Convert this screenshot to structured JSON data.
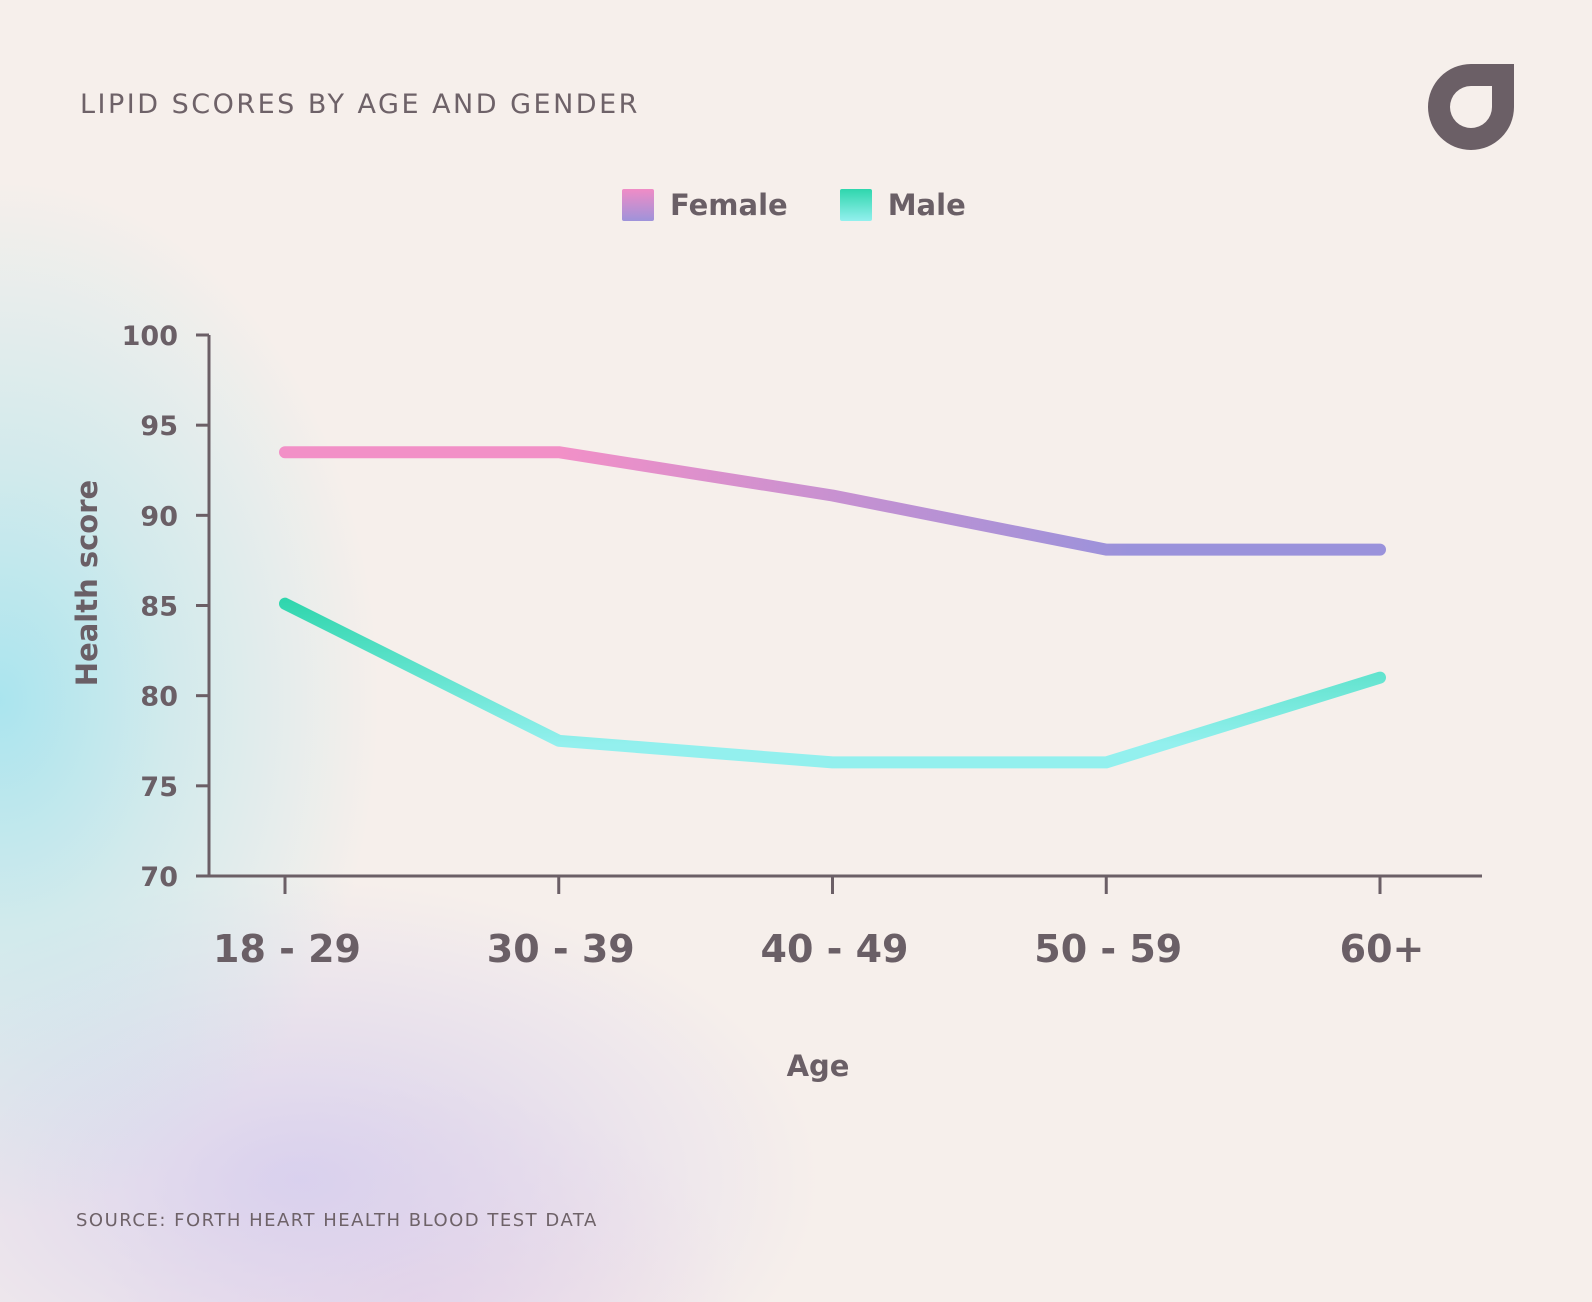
{
  "header": {
    "title": "LIPID SCORES BY AGE AND GENDER",
    "logo_icon": "brand-drop-icon"
  },
  "legend": {
    "items": [
      {
        "label": "Female",
        "color_top": "#f08cc6",
        "color_bottom": "#9e93da"
      },
      {
        "label": "Male",
        "color_top": "#2fd6ad",
        "color_bottom": "#93f0ee"
      }
    ],
    "placement": "top-center"
  },
  "footer": {
    "source": "SOURCE: FORTH HEART HEALTH BLOOD TEST DATA"
  },
  "chart_data": {
    "type": "line",
    "title": "LIPID SCORES BY AGE AND GENDER",
    "xlabel": "Age",
    "ylabel": "Health score",
    "categories": [
      "18 - 29",
      "30 - 39",
      "40 - 49",
      "50 - 59",
      "60+"
    ],
    "y_ticks": [
      70,
      75,
      80,
      85,
      90,
      95,
      100
    ],
    "ylim": [
      70,
      100
    ],
    "grid": false,
    "legend_placement": "top-center",
    "series": [
      {
        "name": "Female",
        "values": [
          93.5,
          93.5,
          91.1,
          88.1,
          88.1
        ],
        "gradient": [
          "#f290c7",
          "#9a92db"
        ]
      },
      {
        "name": "Male",
        "values": [
          85.1,
          77.5,
          76.3,
          76.3,
          81.0
        ],
        "gradient": [
          "#2fd6ad",
          "#93f0ee"
        ]
      }
    ]
  }
}
